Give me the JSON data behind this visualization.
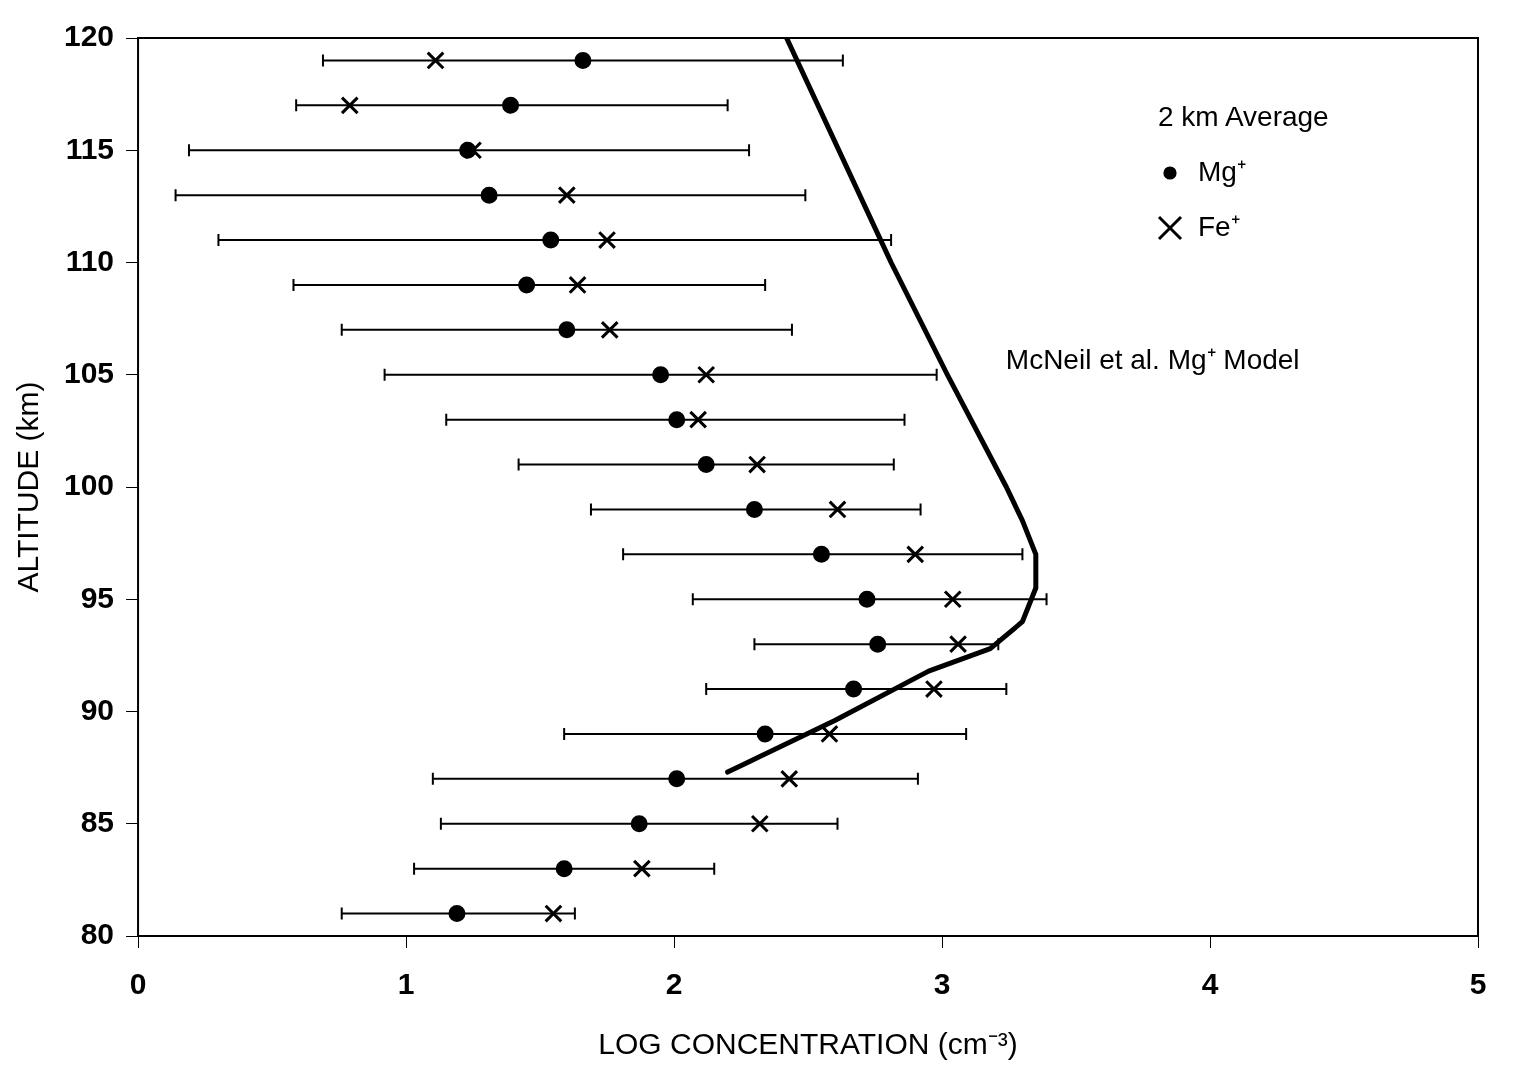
{
  "chart_data": {
    "type": "scatter",
    "xlabel": "LOG CONCENTRATION (cm⁻³)",
    "ylabel": "ALTITUDE (km)",
    "legend_title": "2 km Average",
    "legend": "top right",
    "grid": false,
    "xlim": [
      0,
      5
    ],
    "xticks": [
      0,
      1,
      2,
      3,
      4,
      5
    ],
    "ylim": [
      80,
      120
    ],
    "yticks": [
      80,
      85,
      90,
      95,
      100,
      105,
      110,
      115,
      120
    ],
    "series": [
      {
        "name": "Mg⁺",
        "color": "#000000",
        "marker": "circle",
        "x": [
          1.66,
          1.39,
          1.23,
          1.31,
          1.54,
          1.45,
          1.6,
          1.95,
          2.01,
          2.12,
          2.3,
          2.55,
          2.72,
          2.76,
          2.67,
          2.34,
          2.01,
          1.87,
          1.59,
          1.19
        ],
        "values": [
          119,
          117,
          115,
          113,
          111,
          109,
          107,
          105,
          103,
          101,
          99,
          97,
          95,
          93,
          91,
          89,
          87,
          85,
          83,
          81
        ],
        "xerrors": [
          [
            0.69,
            2.63
          ],
          [
            0.59,
            2.2
          ],
          [
            0.19,
            2.28
          ],
          [
            0.14,
            2.49
          ],
          [
            0.3,
            2.81
          ],
          [
            0.58,
            2.34
          ],
          [
            0.76,
            2.44
          ],
          [
            0.92,
            2.98
          ],
          [
            1.15,
            2.86
          ],
          [
            1.42,
            2.82
          ],
          [
            1.69,
            2.92
          ],
          [
            1.81,
            3.3
          ],
          [
            2.07,
            3.39
          ],
          [
            2.3,
            3.21
          ],
          [
            2.12,
            3.24
          ],
          [
            1.59,
            3.09
          ],
          [
            1.1,
            2.91
          ],
          [
            1.13,
            2.61
          ],
          [
            1.03,
            2.15
          ],
          [
            0.76,
            1.63
          ]
        ]
      },
      {
        "name": "Fe⁺",
        "color": "#000000",
        "marker": "cross",
        "x": [
          1.11,
          0.79,
          1.25,
          1.6,
          1.75,
          1.64,
          1.76,
          2.12,
          2.09,
          2.31,
          2.61,
          2.9,
          3.04,
          3.06,
          2.97,
          2.58,
          2.43,
          2.32,
          1.88,
          1.55
        ],
        "values": [
          119,
          117,
          115,
          113,
          111,
          109,
          107,
          105,
          103,
          101,
          99,
          97,
          95,
          93,
          91,
          89,
          87,
          85,
          83,
          81
        ]
      },
      {
        "name": "McNeil et al. Mg⁺ Model",
        "type": "line",
        "color": "#000000",
        "x": [
          2.42,
          2.81,
          3.02,
          3.24,
          3.3,
          3.35,
          3.35,
          3.3,
          3.18,
          2.95,
          2.6,
          2.2
        ],
        "values": [
          120,
          110,
          105,
          100,
          98.5,
          97,
          95.5,
          94,
          92.8,
          91.8,
          89.6,
          87.3
        ]
      }
    ]
  }
}
